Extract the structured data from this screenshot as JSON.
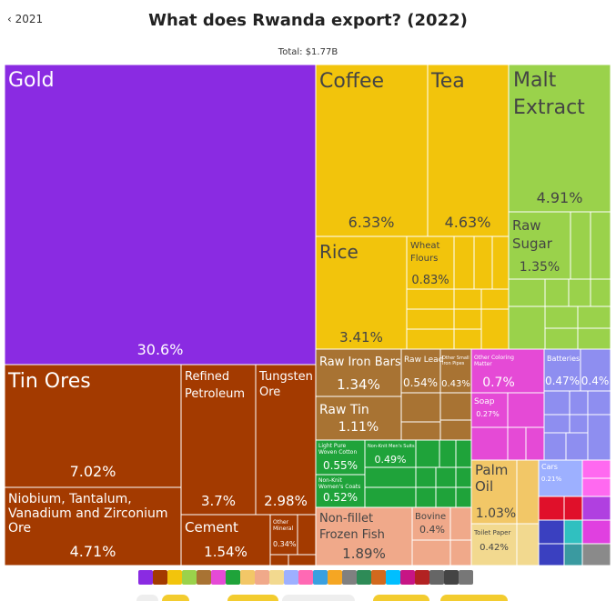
{
  "header": {
    "back_label": "2021",
    "title": "What does Rwanda export? (2022)",
    "total": "Total: $1.77B"
  },
  "chart_data": {
    "type": "treemap",
    "title": "What does Rwanda export? (2022)",
    "total": "Total: $1.77B",
    "items": [
      {
        "name": "Gold",
        "value": 30.6,
        "pct": "30.6%",
        "color": "#8a2be2"
      },
      {
        "name": "Tin Ores",
        "value": 7.02,
        "pct": "7.02%",
        "color": "#a33a00"
      },
      {
        "name": "Niobium, Tantalum, Vanadium and Zirconium Ore",
        "value": 4.71,
        "pct": "4.71%",
        "color": "#a33a00"
      },
      {
        "name": "Refined Petroleum",
        "value": 3.7,
        "pct": "3.7%",
        "color": "#a33a00"
      },
      {
        "name": "Tungsten Ore",
        "value": 2.98,
        "pct": "2.98%",
        "color": "#a33a00"
      },
      {
        "name": "Cement",
        "value": 1.54,
        "pct": "1.54%",
        "color": "#a33a00"
      },
      {
        "name": "Other Mineral",
        "value": 0.34,
        "pct": "0.34%",
        "color": "#a33a00"
      },
      {
        "name": "Coffee",
        "value": 6.33,
        "pct": "6.33%",
        "color": "#f2c40c"
      },
      {
        "name": "Tea",
        "value": 4.63,
        "pct": "4.63%",
        "color": "#f2c40c"
      },
      {
        "name": "Rice",
        "value": 3.41,
        "pct": "3.41%",
        "color": "#f2c40c"
      },
      {
        "name": "Wheat Flours",
        "value": 0.83,
        "pct": "0.83%",
        "color": "#f2c40c"
      },
      {
        "name": "Malt Extract",
        "value": 4.91,
        "pct": "4.91%",
        "color": "#9ad24b"
      },
      {
        "name": "Raw Sugar",
        "value": 1.35,
        "pct": "1.35%",
        "color": "#9ad24b"
      },
      {
        "name": "Raw Iron Bars",
        "value": 1.34,
        "pct": "1.34%",
        "color": "#a87333"
      },
      {
        "name": "Raw Tin",
        "value": 1.11,
        "pct": "1.11%",
        "color": "#a87333"
      },
      {
        "name": "Raw Lead",
        "value": 0.54,
        "pct": "0.54%",
        "color": "#a87333"
      },
      {
        "name": "Other Small Iron Pipes",
        "value": 0.43,
        "pct": "0.43%",
        "color": "#a87333"
      },
      {
        "name": "Other Coloring Matter",
        "value": 0.7,
        "pct": "0.7%",
        "color": "#e54ad6"
      },
      {
        "name": "Soap",
        "value": 0.27,
        "pct": "0.27%",
        "color": "#e54ad6"
      },
      {
        "name": "Batteries",
        "value": 0.47,
        "pct": "0.47%",
        "color": "#8e8ef0"
      },
      {
        "name": "Light Pure Woven Cotton",
        "value": 0.55,
        "pct": "0.55%",
        "color": "#1fa33a"
      },
      {
        "name": "Non-Knit Women's Coats",
        "value": 0.52,
        "pct": "0.52%",
        "color": "#1fa33a"
      },
      {
        "name": "Non-Knit Men's Suits",
        "value": 0.49,
        "pct": "0.49%",
        "color": "#1fa33a"
      },
      {
        "name": "Palm Oil",
        "value": 1.03,
        "pct": "1.03%",
        "color": "#f2c767"
      },
      {
        "name": "Non-fillet Frozen Fish",
        "value": 1.89,
        "pct": "1.89%",
        "color": "#f0a98a"
      },
      {
        "name": "Bovine",
        "value": 0.4,
        "pct": "0.4%",
        "color": "#f0a98a"
      },
      {
        "name": "Toilet Paper",
        "value": 0.42,
        "pct": "0.42%",
        "color": "#f2d98f"
      },
      {
        "name": "Cars",
        "value": 0.21,
        "pct": "0.21%",
        "color": "#9db0ff"
      }
    ]
  },
  "legend_icons": [
    {
      "name": "gem-icon",
      "color": "#8a2be2"
    },
    {
      "name": "pickaxe-icon",
      "color": "#a33a00"
    },
    {
      "name": "apple-icon",
      "color": "#f2c40c"
    },
    {
      "name": "wheat-icon",
      "color": "#9ad24b"
    },
    {
      "name": "tools-icon",
      "color": "#a87333"
    },
    {
      "name": "flask-icon",
      "color": "#e54ad6"
    },
    {
      "name": "shirt-icon",
      "color": "#1fa33a"
    },
    {
      "name": "drop-icon",
      "color": "#f2c767"
    },
    {
      "name": "cow-icon",
      "color": "#f0a98a"
    },
    {
      "name": "paper-icon",
      "color": "#f2d98f"
    },
    {
      "name": "car-icon",
      "color": "#9db0ff"
    },
    {
      "name": "box-icon",
      "color": "#ff69b4"
    },
    {
      "name": "gear-icon",
      "color": "#3aa0e0"
    },
    {
      "name": "bolt-icon",
      "color": "#f5a623"
    },
    {
      "name": "road-icon",
      "color": "#808080"
    },
    {
      "name": "leaf-icon",
      "color": "#2e8b57"
    },
    {
      "name": "hide-icon",
      "color": "#d2691e"
    },
    {
      "name": "glass-icon",
      "color": "#00bfff"
    },
    {
      "name": "shoe-icon",
      "color": "#c71585"
    },
    {
      "name": "chair-icon",
      "color": "#b22222"
    },
    {
      "name": "watch-icon",
      "color": "#666666"
    },
    {
      "name": "gun-icon",
      "color": "#444444"
    },
    {
      "name": "art-icon",
      "color": "#777777"
    }
  ]
}
